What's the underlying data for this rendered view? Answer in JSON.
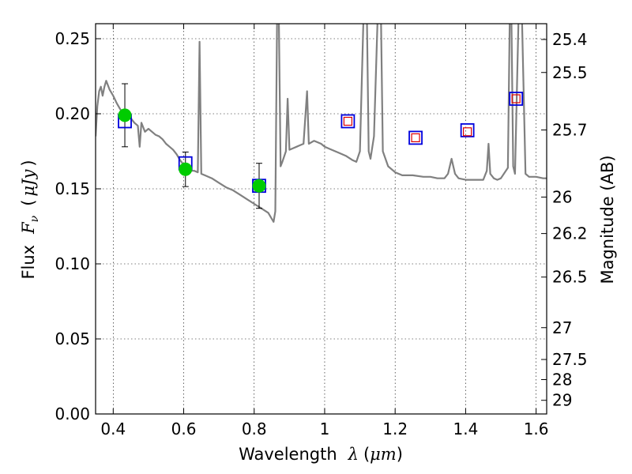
{
  "chart_data": {
    "type": "scatter",
    "title": "",
    "xlabel": {
      "prefix": "Wavelength",
      "symbol": "λ",
      "unit_open": "(",
      "unit": "μm",
      "unit_close": ")"
    },
    "ylabel": {
      "prefix": "Flux",
      "symbol": "F",
      "subscript": "ν",
      "unit_open": "(",
      "unit": "μJy",
      "unit_close": ")"
    },
    "y2label": "Magnitude (AB)",
    "xlim": [
      0.35,
      1.63
    ],
    "ylim": [
      0.0,
      0.26
    ],
    "grid": true,
    "x_ticks": [
      {
        "value": 0.4,
        "label": "0.4"
      },
      {
        "value": 0.6,
        "label": "0.6"
      },
      {
        "value": 0.8,
        "label": "0.8"
      },
      {
        "value": 1.0,
        "label": "1"
      },
      {
        "value": 1.2,
        "label": "1.2"
      },
      {
        "value": 1.4,
        "label": "1.4"
      },
      {
        "value": 1.6,
        "label": "1.6"
      }
    ],
    "y_ticks": [
      {
        "value": 0.0,
        "label": "0.00"
      },
      {
        "value": 0.05,
        "label": "0.05"
      },
      {
        "value": 0.1,
        "label": "0.10"
      },
      {
        "value": 0.15,
        "label": "0.15"
      },
      {
        "value": 0.2,
        "label": "0.20"
      },
      {
        "value": 0.25,
        "label": "0.25"
      }
    ],
    "y2_ticks": [
      {
        "flux": 0.2495,
        "label": "25.4"
      },
      {
        "flux": 0.2275,
        "label": "25.5"
      },
      {
        "flux": 0.1892,
        "label": "25.7"
      },
      {
        "flux": 0.1445,
        "label": "26"
      },
      {
        "flux": 0.1202,
        "label": "26.2"
      },
      {
        "flux": 0.0912,
        "label": "26.5"
      },
      {
        "flux": 0.0575,
        "label": "27"
      },
      {
        "flux": 0.0363,
        "label": "27.5"
      },
      {
        "flux": 0.0229,
        "label": "28"
      },
      {
        "flux": 0.0091,
        "label": "29"
      }
    ],
    "colors": {
      "model": "#808080",
      "observed": "#00cc00",
      "model_box": "#0000dd",
      "inner_box": "#dd0000",
      "errorbar": "#000000"
    },
    "series": [
      {
        "kind": "line",
        "points": [
          [
            0.35,
            0.185
          ],
          [
            0.355,
            0.205
          ],
          [
            0.36,
            0.215
          ],
          [
            0.365,
            0.218
          ],
          [
            0.37,
            0.212
          ],
          [
            0.375,
            0.218
          ],
          [
            0.38,
            0.222
          ],
          [
            0.39,
            0.216
          ],
          [
            0.4,
            0.212
          ],
          [
            0.41,
            0.207
          ],
          [
            0.42,
            0.203
          ],
          [
            0.43,
            0.2
          ],
          [
            0.44,
            0.197
          ],
          [
            0.45,
            0.197
          ],
          [
            0.46,
            0.194
          ],
          [
            0.47,
            0.192
          ],
          [
            0.475,
            0.178
          ],
          [
            0.48,
            0.194
          ],
          [
            0.49,
            0.188
          ],
          [
            0.5,
            0.19
          ],
          [
            0.51,
            0.188
          ],
          [
            0.52,
            0.186
          ],
          [
            0.53,
            0.185
          ],
          [
            0.54,
            0.183
          ],
          [
            0.55,
            0.18
          ],
          [
            0.56,
            0.178
          ],
          [
            0.57,
            0.176
          ],
          [
            0.58,
            0.173
          ],
          [
            0.59,
            0.169
          ],
          [
            0.6,
            0.166
          ],
          [
            0.61,
            0.164
          ],
          [
            0.62,
            0.162
          ],
          [
            0.63,
            0.162
          ],
          [
            0.64,
            0.161
          ],
          [
            0.645,
            0.248
          ],
          [
            0.65,
            0.16
          ],
          [
            0.66,
            0.159
          ],
          [
            0.68,
            0.157
          ],
          [
            0.7,
            0.154
          ],
          [
            0.72,
            0.151
          ],
          [
            0.74,
            0.149
          ],
          [
            0.76,
            0.146
          ],
          [
            0.78,
            0.143
          ],
          [
            0.8,
            0.14
          ],
          [
            0.82,
            0.137
          ],
          [
            0.84,
            0.134
          ],
          [
            0.85,
            0.13
          ],
          [
            0.855,
            0.128
          ],
          [
            0.86,
            0.135
          ],
          [
            0.865,
            0.262
          ],
          [
            0.87,
            0.262
          ],
          [
            0.875,
            0.165
          ],
          [
            0.88,
            0.168
          ],
          [
            0.89,
            0.175
          ],
          [
            0.895,
            0.21
          ],
          [
            0.9,
            0.176
          ],
          [
            0.91,
            0.177
          ],
          [
            0.92,
            0.178
          ],
          [
            0.93,
            0.179
          ],
          [
            0.94,
            0.18
          ],
          [
            0.95,
            0.215
          ],
          [
            0.955,
            0.18
          ],
          [
            0.97,
            0.182
          ],
          [
            0.99,
            0.18
          ],
          [
            1.0,
            0.178
          ],
          [
            1.02,
            0.176
          ],
          [
            1.04,
            0.174
          ],
          [
            1.06,
            0.172
          ],
          [
            1.08,
            0.169
          ],
          [
            1.09,
            0.168
          ],
          [
            1.1,
            0.175
          ],
          [
            1.11,
            0.262
          ],
          [
            1.12,
            0.262
          ],
          [
            1.125,
            0.175
          ],
          [
            1.13,
            0.17
          ],
          [
            1.14,
            0.185
          ],
          [
            1.15,
            0.262
          ],
          [
            1.16,
            0.262
          ],
          [
            1.165,
            0.175
          ],
          [
            1.18,
            0.165
          ],
          [
            1.2,
            0.161
          ],
          [
            1.22,
            0.159
          ],
          [
            1.25,
            0.159
          ],
          [
            1.28,
            0.158
          ],
          [
            1.3,
            0.158
          ],
          [
            1.32,
            0.157
          ],
          [
            1.34,
            0.157
          ],
          [
            1.35,
            0.16
          ],
          [
            1.36,
            0.17
          ],
          [
            1.37,
            0.16
          ],
          [
            1.38,
            0.157
          ],
          [
            1.4,
            0.156
          ],
          [
            1.42,
            0.156
          ],
          [
            1.45,
            0.156
          ],
          [
            1.46,
            0.162
          ],
          [
            1.465,
            0.18
          ],
          [
            1.47,
            0.16
          ],
          [
            1.48,
            0.157
          ],
          [
            1.49,
            0.156
          ],
          [
            1.5,
            0.157
          ],
          [
            1.52,
            0.164
          ],
          [
            1.525,
            0.262
          ],
          [
            1.53,
            0.262
          ],
          [
            1.535,
            0.165
          ],
          [
            1.54,
            0.16
          ],
          [
            1.55,
            0.262
          ],
          [
            1.56,
            0.262
          ],
          [
            1.57,
            0.16
          ],
          [
            1.58,
            0.158
          ],
          [
            1.6,
            0.158
          ],
          [
            1.62,
            0.157
          ],
          [
            1.63,
            0.157
          ]
        ]
      },
      {
        "kind": "model_boxes",
        "points": [
          {
            "x": 0.433,
            "y": 0.195
          },
          {
            "x": 0.605,
            "y": 0.167
          },
          {
            "x": 0.814,
            "y": 0.152
          },
          {
            "x": 1.066,
            "y": 0.195
          },
          {
            "x": 1.258,
            "y": 0.184
          },
          {
            "x": 1.405,
            "y": 0.189
          },
          {
            "x": 1.543,
            "y": 0.21
          }
        ]
      },
      {
        "kind": "observed",
        "points": [
          {
            "x": 0.433,
            "y": 0.199,
            "yerr": 0.021
          },
          {
            "x": 0.605,
            "y": 0.163,
            "yerr": 0.0115
          },
          {
            "x": 0.814,
            "y": 0.152,
            "yerr": 0.015
          }
        ]
      },
      {
        "kind": "upper_limits",
        "points": [
          {
            "x": 1.066,
            "y": 0.195
          },
          {
            "x": 1.258,
            "y": 0.184
          },
          {
            "x": 1.405,
            "y": 0.188
          },
          {
            "x": 1.543,
            "y": 0.21
          }
        ]
      }
    ]
  }
}
